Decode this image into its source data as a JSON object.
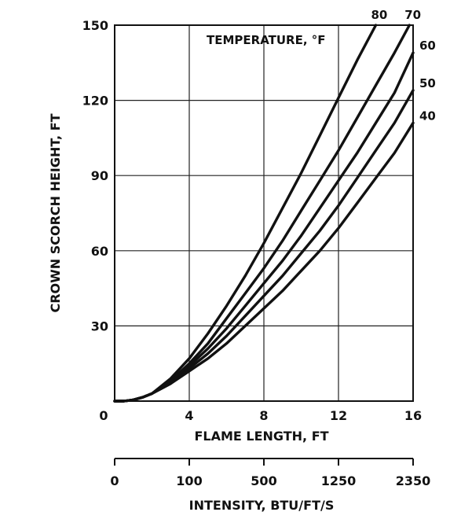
{
  "chart_data": {
    "type": "line",
    "title": "",
    "legend_title": "TEMPERATURE, °F",
    "xlabel": "FLAME LENGTH, FT",
    "ylabel": "CROWN SCORCH HEIGHT, FT",
    "xlim": [
      0,
      16
    ],
    "ylim": [
      0,
      150
    ],
    "x_ticks": [
      "0",
      "4",
      "8",
      "12",
      "16"
    ],
    "y_ticks": [
      "0",
      "30",
      "60",
      "90",
      "120",
      "150"
    ],
    "grid": true,
    "series": [
      {
        "name": "80",
        "x": [
          0,
          0.5,
          1,
          1.5,
          2,
          3,
          4,
          5,
          6,
          7,
          8,
          9,
          10,
          11,
          12,
          13,
          14
        ],
        "y": [
          0,
          0,
          0.5,
          1.5,
          3,
          9,
          17,
          27,
          38,
          50,
          63,
          77,
          91,
          106,
          121,
          136,
          150
        ]
      },
      {
        "name": "70",
        "x": [
          0,
          0.5,
          1,
          1.5,
          2,
          3,
          4,
          5,
          6,
          7,
          8,
          9,
          10,
          11,
          12,
          13,
          14,
          15,
          15.8
        ],
        "y": [
          0,
          0,
          0.5,
          1.5,
          3,
          8,
          15,
          23,
          33,
          43,
          53,
          64,
          76,
          88,
          100,
          113,
          126,
          139,
          150
        ]
      },
      {
        "name": "60",
        "x": [
          0,
          0.5,
          1,
          1.5,
          2,
          3,
          4,
          5,
          6,
          7,
          8,
          9,
          10,
          11,
          12,
          13,
          14,
          15,
          16
        ],
        "y": [
          0,
          0,
          0.5,
          1.5,
          3,
          8,
          14,
          21,
          29,
          38,
          47,
          56,
          66,
          77,
          88,
          99,
          111,
          123,
          139
        ]
      },
      {
        "name": "50",
        "x": [
          0,
          0.5,
          1,
          1.5,
          2,
          3,
          4,
          5,
          6,
          7,
          8,
          9,
          10,
          11,
          12,
          13,
          14,
          15,
          16
        ],
        "y": [
          0,
          0,
          0.5,
          1.5,
          3,
          7,
          13,
          19,
          26,
          34,
          42,
          50,
          59,
          68,
          78,
          89,
          100,
          111,
          124
        ]
      },
      {
        "name": "40",
        "x": [
          0,
          0.5,
          1,
          1.5,
          2,
          3,
          4,
          5,
          6,
          7,
          8,
          9,
          10,
          11,
          12,
          13,
          14,
          15,
          16
        ],
        "y": [
          0,
          0,
          0.5,
          1.5,
          3,
          7,
          12,
          17,
          23,
          30,
          37,
          44,
          52,
          60,
          69,
          79,
          89,
          99,
          111
        ]
      }
    ],
    "secondary_axis": {
      "label": "INTENSITY, BTU/FT/S",
      "ticks": [
        "0",
        "100",
        "500",
        "1250",
        "2350"
      ]
    }
  }
}
